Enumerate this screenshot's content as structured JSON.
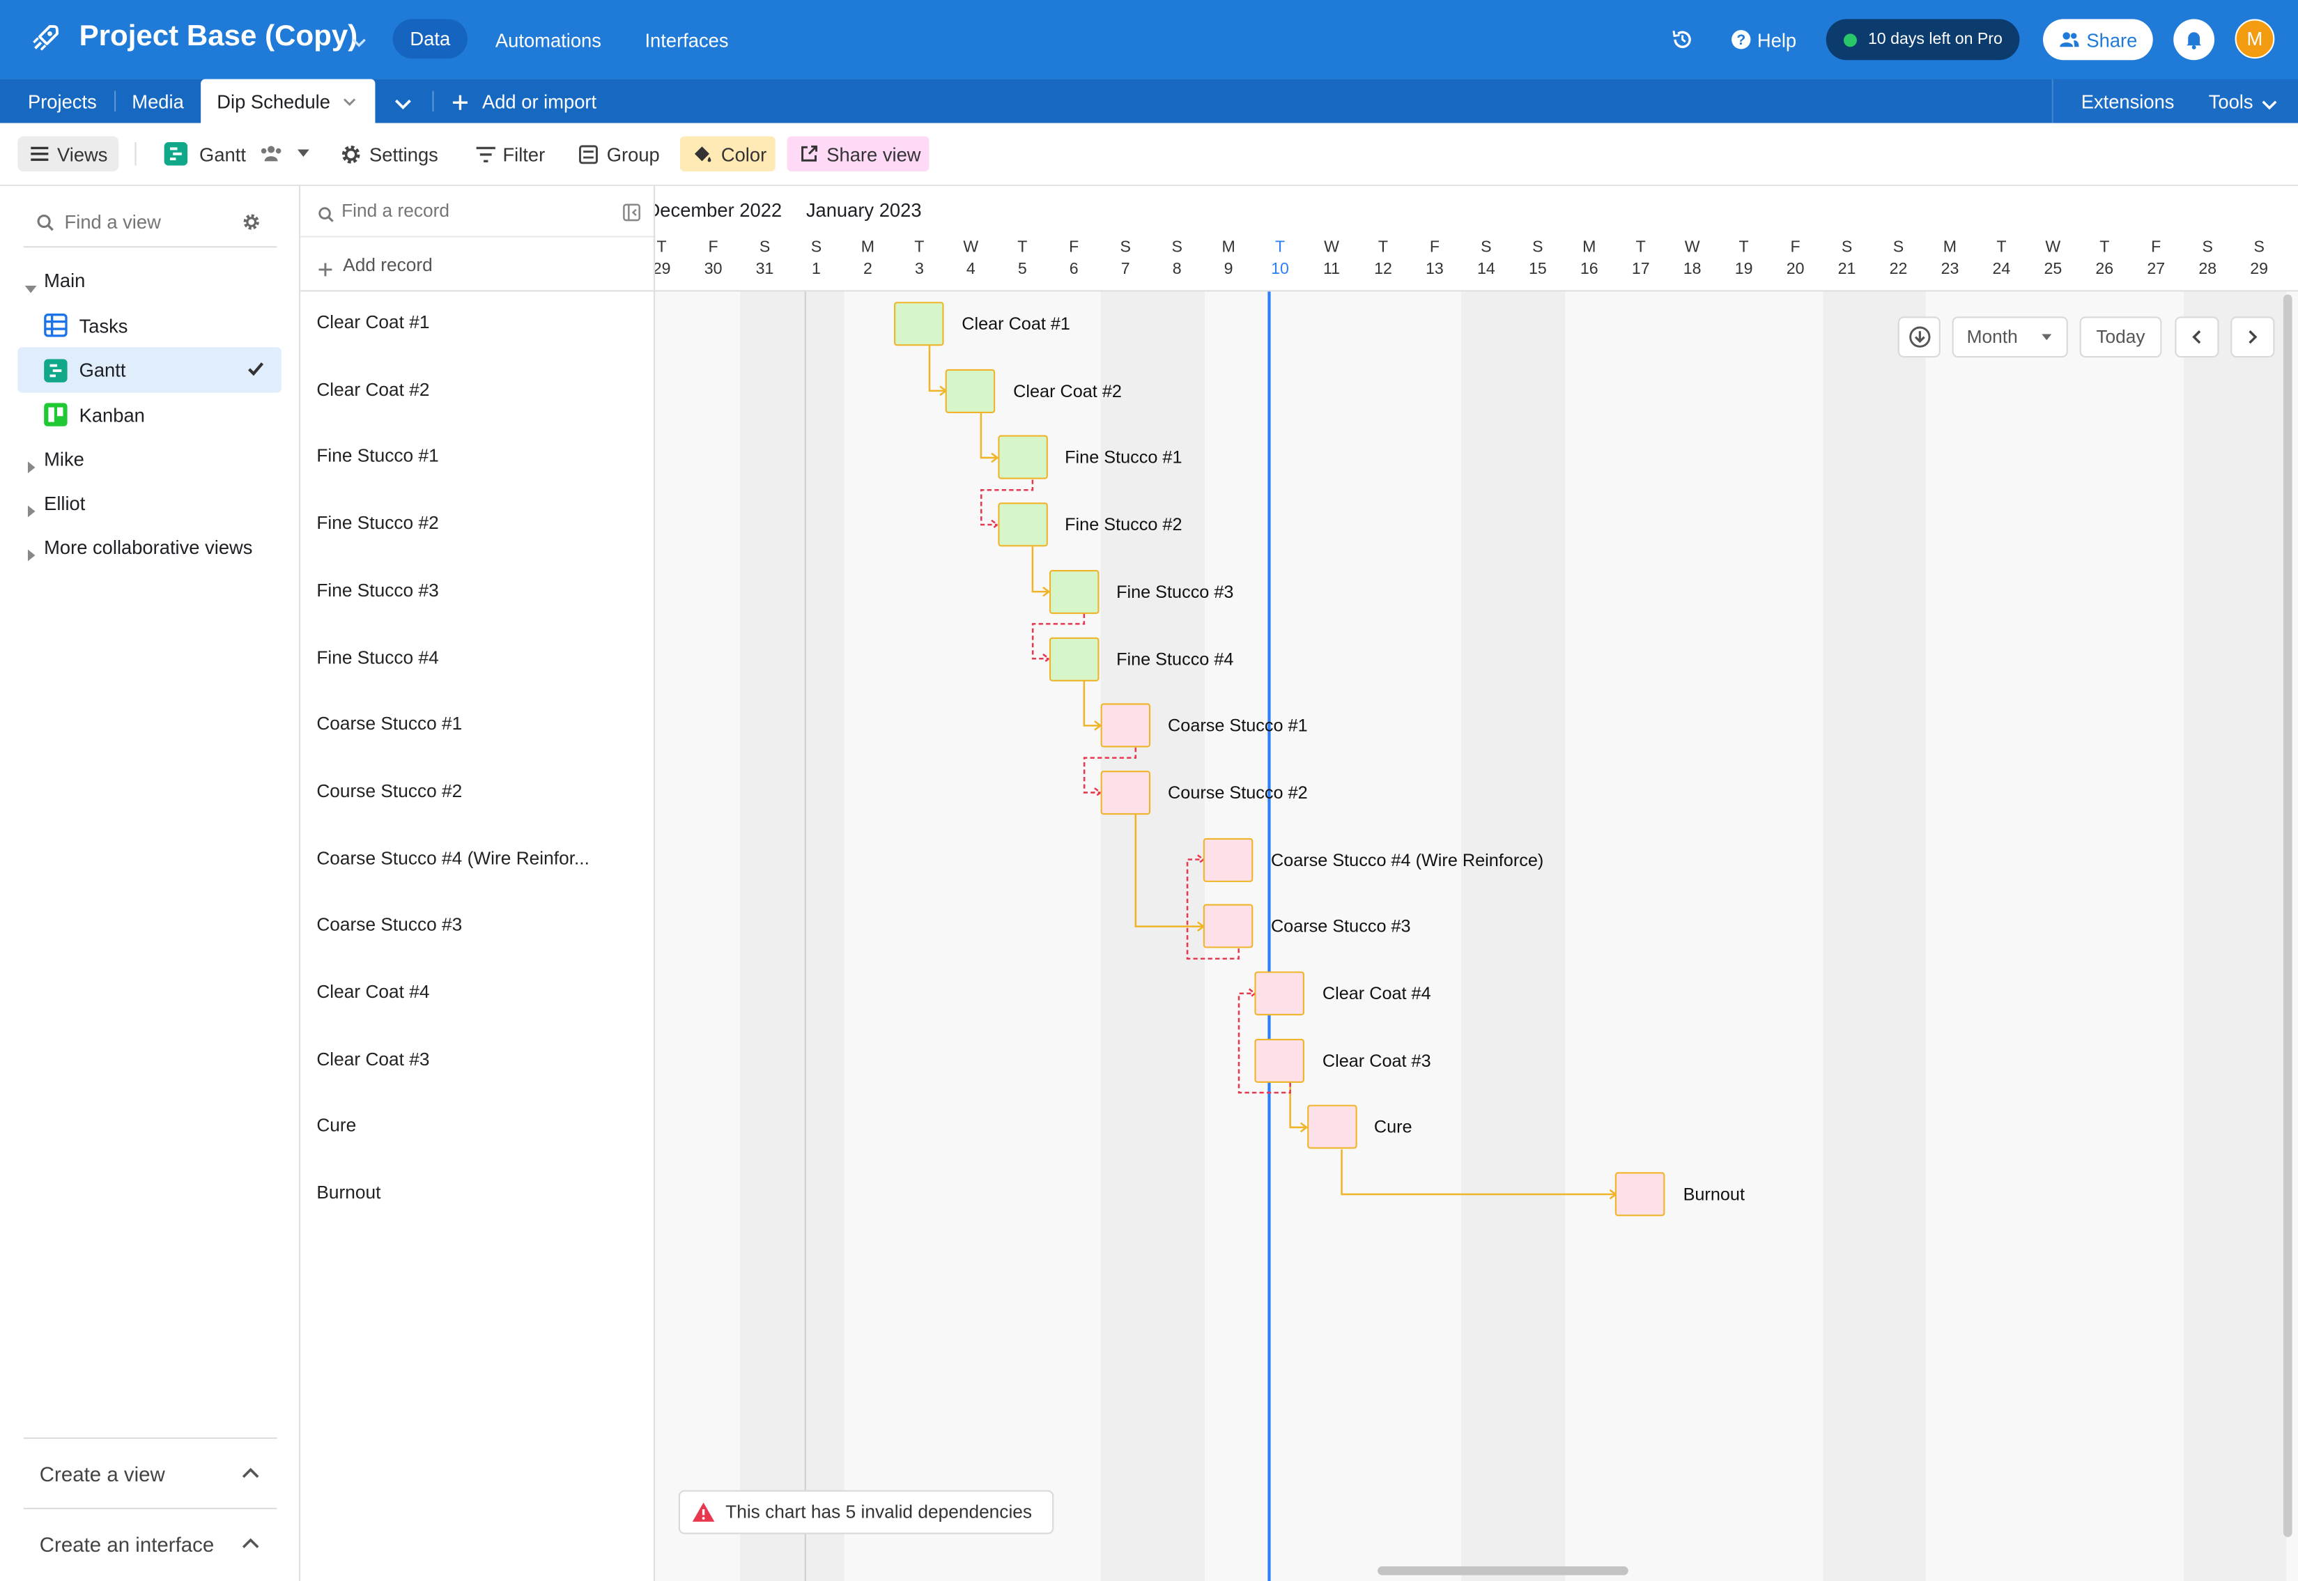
{
  "header": {
    "base_title": "Project Base (Copy)",
    "nav": [
      "Data",
      "Automations",
      "Interfaces"
    ],
    "help_label": "Help",
    "trial_label": "10 days left on Pro",
    "share_label": "Share",
    "avatar_initial": "M"
  },
  "tabs": {
    "items": [
      "Projects",
      "Media",
      "Dip Schedule"
    ],
    "add_label": "Add or import",
    "extensions_label": "Extensions",
    "tools_label": "Tools"
  },
  "toolbar": {
    "views_label": "Views",
    "view_name": "Gantt",
    "settings_label": "Settings",
    "filter_label": "Filter",
    "group_label": "Group",
    "color_label": "Color",
    "share_view_label": "Share view"
  },
  "sidebar": {
    "find_placeholder": "Find a view",
    "main_label": "Main",
    "views": [
      "Tasks",
      "Gantt",
      "Kanban"
    ],
    "groups": [
      "Mike",
      "Elliot",
      "More collaborative views"
    ],
    "create_view_label": "Create a view",
    "create_interface_label": "Create an interface"
  },
  "records_panel": {
    "find_placeholder": "Find a record",
    "add_label": "Add record",
    "rows": [
      "Clear Coat #1",
      "Clear Coat #2",
      "Fine Stucco #1",
      "Fine Stucco #2",
      "Fine Stucco #3",
      "Fine Stucco #4",
      "Coarse Stucco #1",
      "Course Stucco #2",
      "Coarse Stucco #4 (Wire Reinfor...",
      "Coarse Stucco #3",
      "Clear Coat #4",
      "Clear Coat #3",
      "Cure",
      "Burnout"
    ]
  },
  "gantt": {
    "months": [
      "December 2022",
      "January 2023"
    ],
    "days": [
      {
        "l": "T",
        "n": "29"
      },
      {
        "l": "F",
        "n": "30"
      },
      {
        "l": "S",
        "n": "31"
      },
      {
        "l": "S",
        "n": "1"
      },
      {
        "l": "M",
        "n": "2"
      },
      {
        "l": "T",
        "n": "3"
      },
      {
        "l": "W",
        "n": "4"
      },
      {
        "l": "T",
        "n": "5"
      },
      {
        "l": "F",
        "n": "6"
      },
      {
        "l": "S",
        "n": "7"
      },
      {
        "l": "S",
        "n": "8"
      },
      {
        "l": "M",
        "n": "9"
      },
      {
        "l": "T",
        "n": "10"
      },
      {
        "l": "W",
        "n": "11"
      },
      {
        "l": "T",
        "n": "12"
      },
      {
        "l": "F",
        "n": "13"
      },
      {
        "l": "S",
        "n": "14"
      },
      {
        "l": "S",
        "n": "15"
      },
      {
        "l": "M",
        "n": "16"
      },
      {
        "l": "T",
        "n": "17"
      },
      {
        "l": "W",
        "n": "18"
      },
      {
        "l": "T",
        "n": "19"
      },
      {
        "l": "F",
        "n": "20"
      },
      {
        "l": "S",
        "n": "21"
      },
      {
        "l": "S",
        "n": "22"
      },
      {
        "l": "M",
        "n": "23"
      },
      {
        "l": "T",
        "n": "24"
      },
      {
        "l": "W",
        "n": "25"
      },
      {
        "l": "T",
        "n": "26"
      },
      {
        "l": "F",
        "n": "27"
      },
      {
        "l": "S",
        "n": "28"
      },
      {
        "l": "S",
        "n": "29"
      }
    ],
    "today": "10",
    "tasks": [
      {
        "name": "Clear Coat #1",
        "day": "Jan 3",
        "color": "#d6f5c9"
      },
      {
        "name": "Clear Coat #2",
        "day": "Jan 4",
        "color": "#d6f5c9"
      },
      {
        "name": "Fine Stucco #1",
        "day": "Jan 5",
        "color": "#d6f5c9"
      },
      {
        "name": "Fine Stucco #2",
        "day": "Jan 5",
        "color": "#d6f5c9"
      },
      {
        "name": "Fine Stucco #3",
        "day": "Jan 6",
        "color": "#d6f5c9"
      },
      {
        "name": "Fine Stucco #4",
        "day": "Jan 6",
        "color": "#d6f5c9"
      },
      {
        "name": "Coarse Stucco #1",
        "day": "Jan 7",
        "color": "#fde0e8"
      },
      {
        "name": "Course Stucco #2",
        "day": "Jan 7",
        "color": "#fde0e8"
      },
      {
        "name": "Coarse Stucco #4 (Wire Reinforce)",
        "day": "Jan 9",
        "color": "#fde0e8"
      },
      {
        "name": "Coarse Stucco #3",
        "day": "Jan 9",
        "color": "#fde0e8"
      },
      {
        "name": "Clear Coat #4",
        "day": "Jan 10",
        "color": "#fde0e8"
      },
      {
        "name": "Clear Coat #3",
        "day": "Jan 10",
        "color": "#fde0e8"
      },
      {
        "name": "Cure",
        "day": "Jan 11",
        "color": "#fde0e8"
      },
      {
        "name": "Burnout",
        "day": "Jan 17",
        "color": "#fde0e8"
      }
    ],
    "scale_label": "Month",
    "today_label": "Today",
    "warning": "This chart has 5 invalid dependencies"
  }
}
